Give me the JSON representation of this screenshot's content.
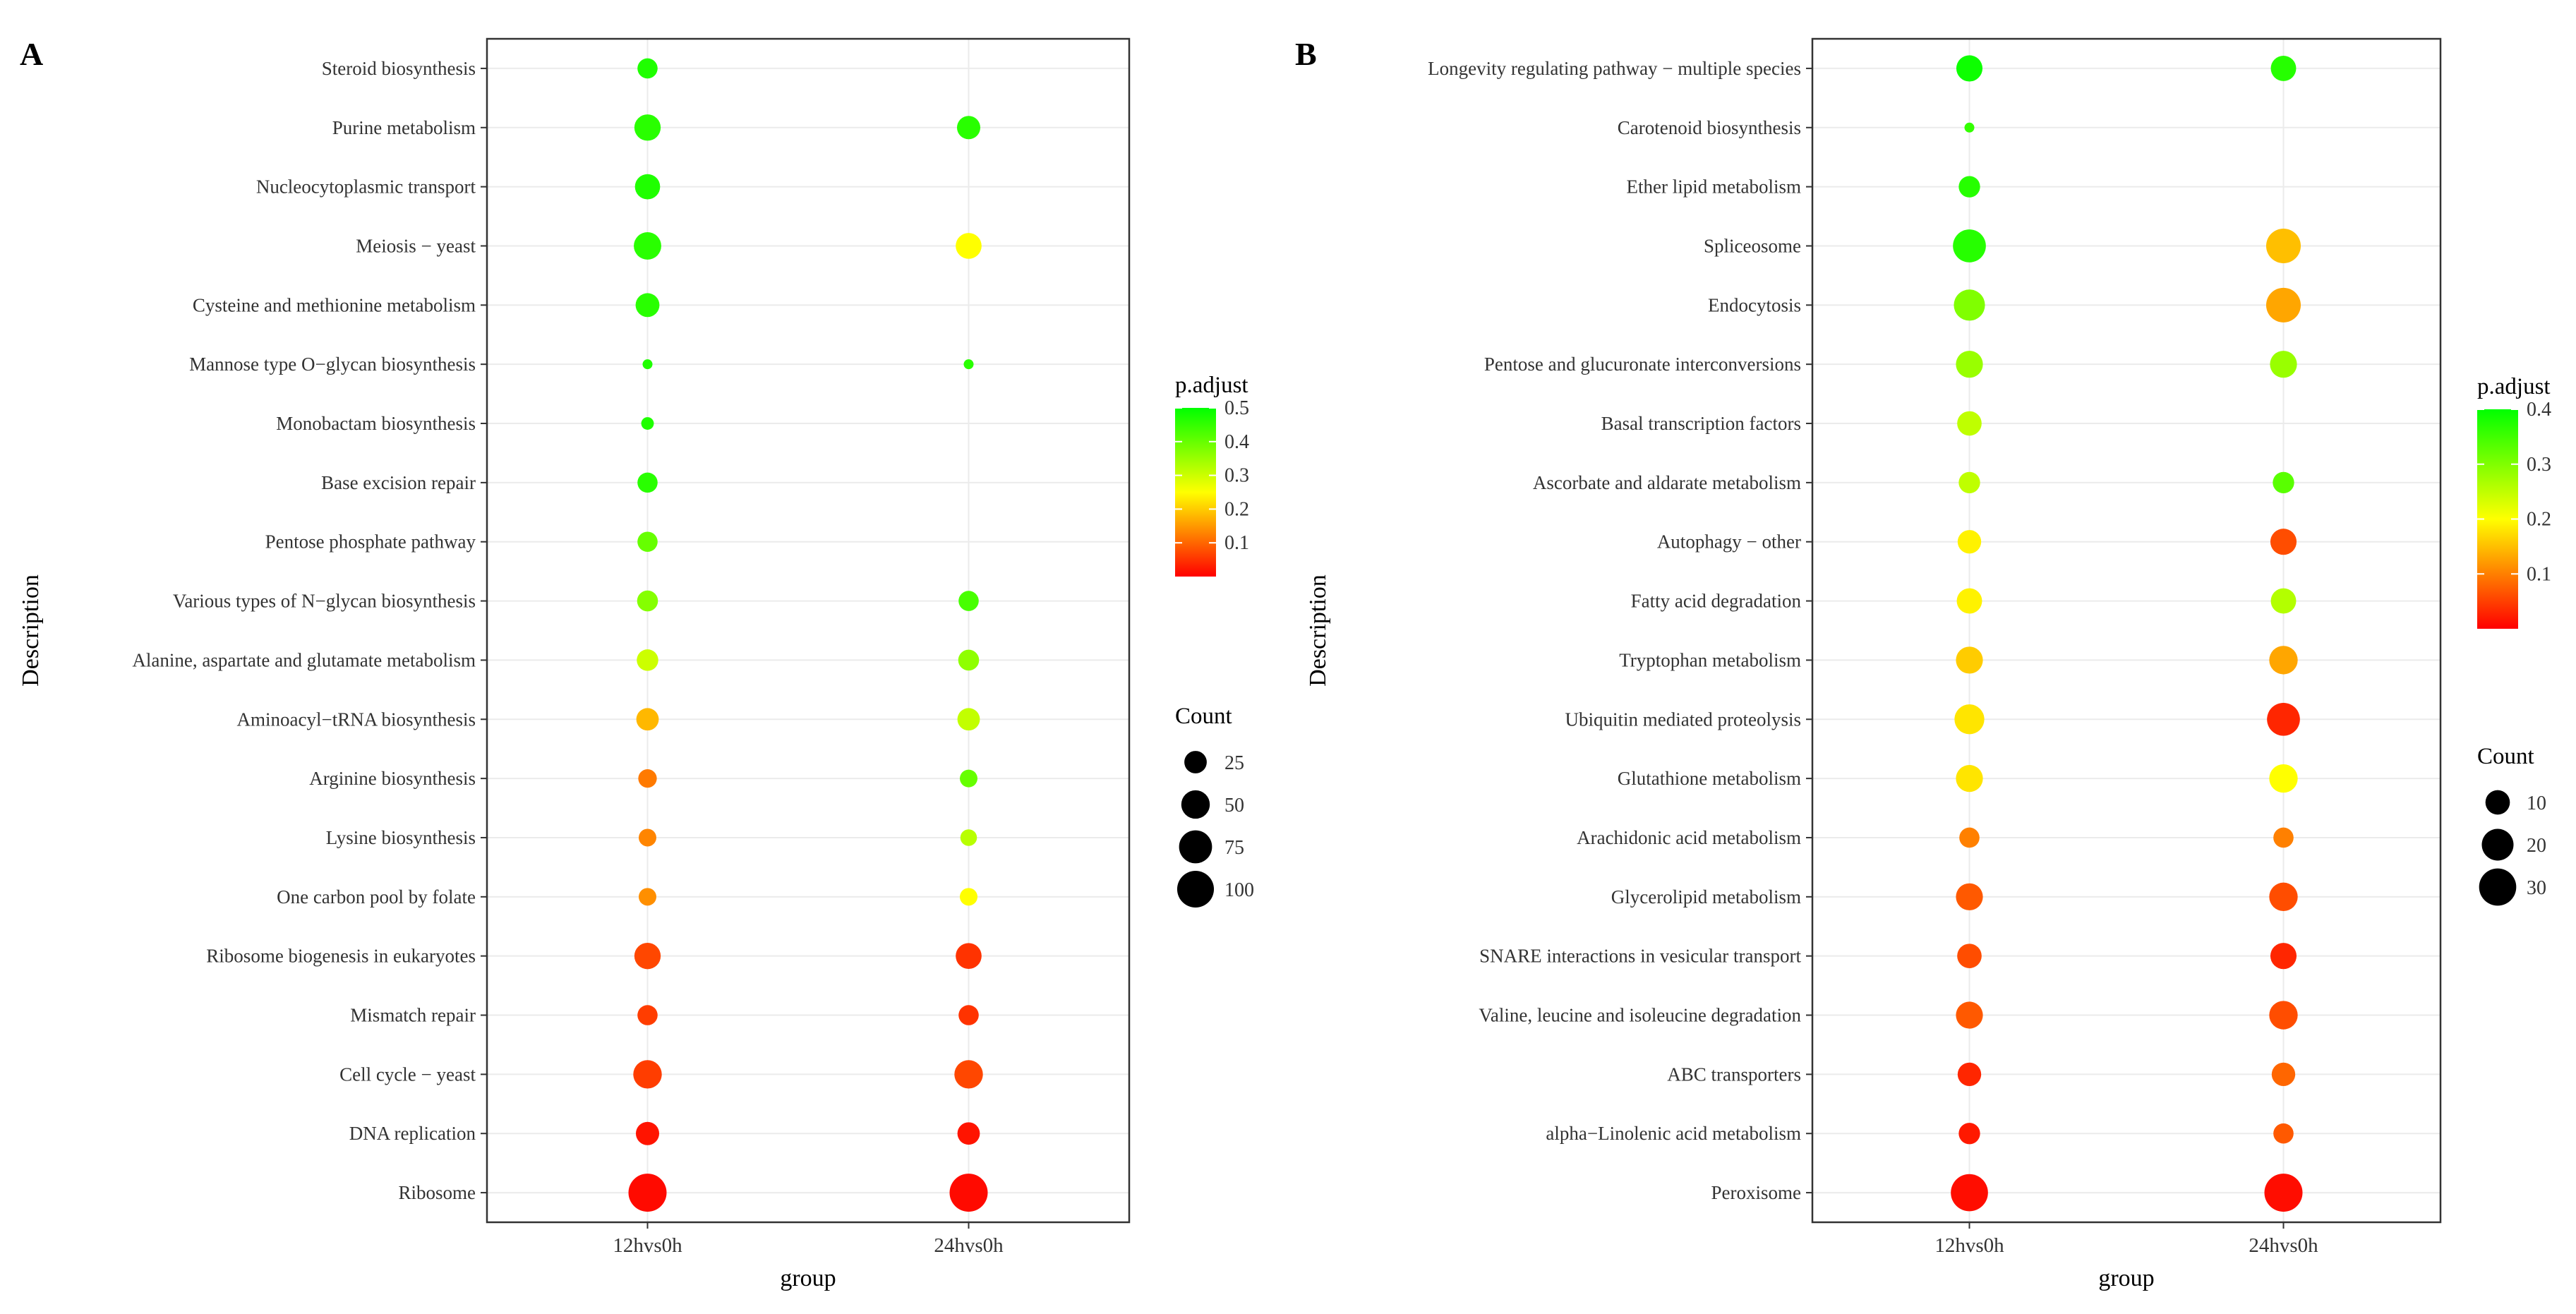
{
  "chart_data": [
    {
      "type": "scatter",
      "panel_label": "A",
      "xlabel": "group",
      "ylabel": "Description",
      "categories": [
        "12hvs0h",
        "24hvs0h"
      ],
      "descriptions": [
        "Steroid biosynthesis",
        "Purine metabolism",
        "Nucleocytoplasmic transport",
        "Meiosis − yeast",
        "Cysteine and methionine metabolism",
        "Mannose type O−glycan biosynthesis",
        "Monobactam biosynthesis",
        "Base excision repair",
        "Pentose phosphate pathway",
        "Various types of N−glycan biosynthesis",
        "Alanine, aspartate and glutamate metabolism",
        "Aminoacyl−tRNA biosynthesis",
        "Arginine biosynthesis",
        "Lysine biosynthesis",
        "One carbon pool by folate",
        "Ribosome biogenesis in eukaryotes",
        "Mismatch repair",
        "Cell cycle − yeast",
        "DNA replication",
        "Ribosome"
      ],
      "points": [
        {
          "group": "12hvs0h",
          "description": "Steroid biosynthesis",
          "count": 18,
          "p_adjust": 0.47
        },
        {
          "group": "12hvs0h",
          "description": "Purine metabolism",
          "count": 40,
          "p_adjust": 0.46
        },
        {
          "group": "12hvs0h",
          "description": "Nucleocytoplasmic transport",
          "count": 35,
          "p_adjust": 0.47
        },
        {
          "group": "12hvs0h",
          "description": "Meiosis − yeast",
          "count": 45,
          "p_adjust": 0.46
        },
        {
          "group": "12hvs0h",
          "description": "Cysteine and methionine metabolism",
          "count": 30,
          "p_adjust": 0.46
        },
        {
          "group": "12hvs0h",
          "description": "Mannose type O−glycan biosynthesis",
          "count": 4,
          "p_adjust": 0.47
        },
        {
          "group": "12hvs0h",
          "description": "Monobactam biosynthesis",
          "count": 5,
          "p_adjust": 0.47
        },
        {
          "group": "12hvs0h",
          "description": "Base excision repair",
          "count": 18,
          "p_adjust": 0.46
        },
        {
          "group": "12hvs0h",
          "description": "Pentose phosphate pathway",
          "count": 18,
          "p_adjust": 0.4
        },
        {
          "group": "12hvs0h",
          "description": "Various types of N−glycan biosynthesis",
          "count": 20,
          "p_adjust": 0.37
        },
        {
          "group": "12hvs0h",
          "description": "Alanine, aspartate and glutamate metabolism",
          "count": 22,
          "p_adjust": 0.3
        },
        {
          "group": "12hvs0h",
          "description": "Aminoacyl−tRNA biosynthesis",
          "count": 25,
          "p_adjust": 0.18
        },
        {
          "group": "12hvs0h",
          "description": "Arginine biosynthesis",
          "count": 14,
          "p_adjust": 0.12
        },
        {
          "group": "12hvs0h",
          "description": "Lysine biosynthesis",
          "count": 12,
          "p_adjust": 0.13
        },
        {
          "group": "12hvs0h",
          "description": "One carbon pool by folate",
          "count": 12,
          "p_adjust": 0.14
        },
        {
          "group": "12hvs0h",
          "description": "Ribosome biogenesis in eukaryotes",
          "count": 40,
          "p_adjust": 0.07
        },
        {
          "group": "12hvs0h",
          "description": "Mismatch repair",
          "count": 18,
          "p_adjust": 0.06
        },
        {
          "group": "12hvs0h",
          "description": "Cell cycle − yeast",
          "count": 50,
          "p_adjust": 0.06
        },
        {
          "group": "12hvs0h",
          "description": "DNA replication",
          "count": 28,
          "p_adjust": 0.02
        },
        {
          "group": "12hvs0h",
          "description": "Ribosome",
          "count": 110,
          "p_adjust": 0.01
        },
        {
          "group": "24hvs0h",
          "description": "Purine metabolism",
          "count": 28,
          "p_adjust": 0.46
        },
        {
          "group": "24hvs0h",
          "description": "Meiosis − yeast",
          "count": 38,
          "p_adjust": 0.25
        },
        {
          "group": "24hvs0h",
          "description": "Mannose type O−glycan biosynthesis",
          "count": 4,
          "p_adjust": 0.46
        },
        {
          "group": "24hvs0h",
          "description": "Various types of N−glycan biosynthesis",
          "count": 18,
          "p_adjust": 0.43
        },
        {
          "group": "24hvs0h",
          "description": "Alanine, aspartate and glutamate metabolism",
          "count": 20,
          "p_adjust": 0.36
        },
        {
          "group": "24hvs0h",
          "description": "Aminoacyl−tRNA biosynthesis",
          "count": 25,
          "p_adjust": 0.31
        },
        {
          "group": "24hvs0h",
          "description": "Arginine biosynthesis",
          "count": 12,
          "p_adjust": 0.4
        },
        {
          "group": "24hvs0h",
          "description": "Lysine biosynthesis",
          "count": 10,
          "p_adjust": 0.32
        },
        {
          "group": "24hvs0h",
          "description": "One carbon pool by folate",
          "count": 12,
          "p_adjust": 0.25
        },
        {
          "group": "24hvs0h",
          "description": "Ribosome biogenesis in eukaryotes",
          "count": 38,
          "p_adjust": 0.05
        },
        {
          "group": "24hvs0h",
          "description": "Mismatch repair",
          "count": 18,
          "p_adjust": 0.05
        },
        {
          "group": "24hvs0h",
          "description": "Cell cycle − yeast",
          "count": 50,
          "p_adjust": 0.07
        },
        {
          "group": "24hvs0h",
          "description": "DNA replication",
          "count": 25,
          "p_adjust": 0.02
        },
        {
          "group": "24hvs0h",
          "description": "Ribosome",
          "count": 110,
          "p_adjust": 0.01
        }
      ],
      "color_legend": {
        "title": "p.adjust",
        "min": 0,
        "max": 0.5,
        "ticks": [
          0.1,
          0.2,
          0.3,
          0.4,
          0.5
        ],
        "tick_labels": [
          "0.1",
          "0.2",
          "0.3",
          "0.4",
          "0.5"
        ],
        "low_color": "#ff0000",
        "high_color": "#00ff00"
      },
      "size_legend": {
        "title": "Count",
        "values": [
          25,
          50,
          75,
          100
        ],
        "labels": [
          "25",
          "50",
          "75",
          "100"
        ]
      },
      "grid": true
    },
    {
      "type": "scatter",
      "panel_label": "B",
      "xlabel": "group",
      "ylabel": "Description",
      "categories": [
        "12hvs0h",
        "24hvs0h"
      ],
      "descriptions": [
        "Longevity regulating pathway − multiple species",
        "Carotenoid biosynthesis",
        "Ether lipid metabolism",
        "Spliceosome",
        "Endocytosis",
        "Pentose and glucuronate interconversions",
        "Basal transcription factors",
        "Ascorbate and aldarate metabolism",
        "Autophagy − other",
        "Fatty acid degradation",
        "Tryptophan metabolism",
        "Ubiquitin mediated proteolysis",
        "Glutathione metabolism",
        "Arachidonic acid metabolism",
        "Glycerolipid metabolism",
        "SNARE interactions in vesicular transport",
        "Valine, leucine and isoleucine degradation",
        "ABC transporters",
        "alpha−Linolenic acid metabolism",
        "Peroxisome"
      ],
      "points": [
        {
          "group": "12hvs0h",
          "description": "Longevity regulating pathway − multiple species",
          "count": 12,
          "p_adjust": 0.39
        },
        {
          "group": "12hvs0h",
          "description": "Carotenoid biosynthesis",
          "count": 2,
          "p_adjust": 0.36
        },
        {
          "group": "12hvs0h",
          "description": "Ether lipid metabolism",
          "count": 7,
          "p_adjust": 0.37
        },
        {
          "group": "12hvs0h",
          "description": "Spliceosome",
          "count": 22,
          "p_adjust": 0.37
        },
        {
          "group": "12hvs0h",
          "description": "Endocytosis",
          "count": 19,
          "p_adjust": 0.3
        },
        {
          "group": "12hvs0h",
          "description": "Pentose and glucuronate interconversions",
          "count": 13,
          "p_adjust": 0.28
        },
        {
          "group": "12hvs0h",
          "description": "Basal transcription factors",
          "count": 10,
          "p_adjust": 0.25
        },
        {
          "group": "12hvs0h",
          "description": "Ascorbate and aldarate metabolism",
          "count": 7,
          "p_adjust": 0.25
        },
        {
          "group": "12hvs0h",
          "description": "Autophagy − other",
          "count": 9,
          "p_adjust": 0.19
        },
        {
          "group": "12hvs0h",
          "description": "Fatty acid degradation",
          "count": 11,
          "p_adjust": 0.19
        },
        {
          "group": "12hvs0h",
          "description": "Tryptophan metabolism",
          "count": 13,
          "p_adjust": 0.16
        },
        {
          "group": "12hvs0h",
          "description": "Ubiquitin mediated proteolysis",
          "count": 17,
          "p_adjust": 0.18
        },
        {
          "group": "12hvs0h",
          "description": "Glutathione metabolism",
          "count": 13,
          "p_adjust": 0.18
        },
        {
          "group": "12hvs0h",
          "description": "Arachidonic acid metabolism",
          "count": 6,
          "p_adjust": 0.1
        },
        {
          "group": "12hvs0h",
          "description": "Glycerolipid metabolism",
          "count": 13,
          "p_adjust": 0.07
        },
        {
          "group": "12hvs0h",
          "description": "SNARE interactions in vesicular transport",
          "count": 10,
          "p_adjust": 0.06
        },
        {
          "group": "12hvs0h",
          "description": "Valine, leucine and isoleucine degradation",
          "count": 13,
          "p_adjust": 0.07
        },
        {
          "group": "12hvs0h",
          "description": "ABC transporters",
          "count": 9,
          "p_adjust": 0.03
        },
        {
          "group": "12hvs0h",
          "description": "alpha−Linolenic acid metabolism",
          "count": 7,
          "p_adjust": 0.02
        },
        {
          "group": "12hvs0h",
          "description": "Peroxisome",
          "count": 30,
          "p_adjust": 0.01
        },
        {
          "group": "24hvs0h",
          "description": "Longevity regulating pathway − multiple species",
          "count": 11,
          "p_adjust": 0.37
        },
        {
          "group": "24hvs0h",
          "description": "Spliceosome",
          "count": 25,
          "p_adjust": 0.15
        },
        {
          "group": "24hvs0h",
          "description": "Endocytosis",
          "count": 25,
          "p_adjust": 0.13
        },
        {
          "group": "24hvs0h",
          "description": "Pentose and glucuronate interconversions",
          "count": 13,
          "p_adjust": 0.28
        },
        {
          "group": "24hvs0h",
          "description": "Ascorbate and aldarate metabolism",
          "count": 7,
          "p_adjust": 0.33
        },
        {
          "group": "24hvs0h",
          "description": "Autophagy − other",
          "count": 12,
          "p_adjust": 0.06
        },
        {
          "group": "24hvs0h",
          "description": "Fatty acid degradation",
          "count": 11,
          "p_adjust": 0.26
        },
        {
          "group": "24hvs0h",
          "description": "Tryptophan metabolism",
          "count": 15,
          "p_adjust": 0.13
        },
        {
          "group": "24hvs0h",
          "description": "Ubiquitin mediated proteolysis",
          "count": 22,
          "p_adjust": 0.03
        },
        {
          "group": "24hvs0h",
          "description": "Glutathione metabolism",
          "count": 15,
          "p_adjust": 0.2
        },
        {
          "group": "24hvs0h",
          "description": "Arachidonic acid metabolism",
          "count": 6,
          "p_adjust": 0.1
        },
        {
          "group": "24hvs0h",
          "description": "Glycerolipid metabolism",
          "count": 15,
          "p_adjust": 0.06
        },
        {
          "group": "24hvs0h",
          "description": "SNARE interactions in vesicular transport",
          "count": 12,
          "p_adjust": 0.03
        },
        {
          "group": "24hvs0h",
          "description": "Valine, leucine and isoleucine degradation",
          "count": 15,
          "p_adjust": 0.06
        },
        {
          "group": "24hvs0h",
          "description": "ABC transporters",
          "count": 9,
          "p_adjust": 0.08
        },
        {
          "group": "24hvs0h",
          "description": "alpha−Linolenic acid metabolism",
          "count": 6,
          "p_adjust": 0.07
        },
        {
          "group": "24hvs0h",
          "description": "Peroxisome",
          "count": 32,
          "p_adjust": 0.01
        }
      ],
      "color_legend": {
        "title": "p.adjust",
        "min": 0,
        "max": 0.4,
        "ticks": [
          0.1,
          0.2,
          0.3,
          0.4
        ],
        "tick_labels": [
          "0.1",
          "0.2",
          "0.3",
          "0.4"
        ],
        "low_color": "#ff0000",
        "high_color": "#00ff00"
      },
      "size_legend": {
        "title": "Count",
        "values": [
          10,
          20,
          30
        ],
        "labels": [
          "10",
          "20",
          "30"
        ]
      },
      "grid": true
    }
  ]
}
